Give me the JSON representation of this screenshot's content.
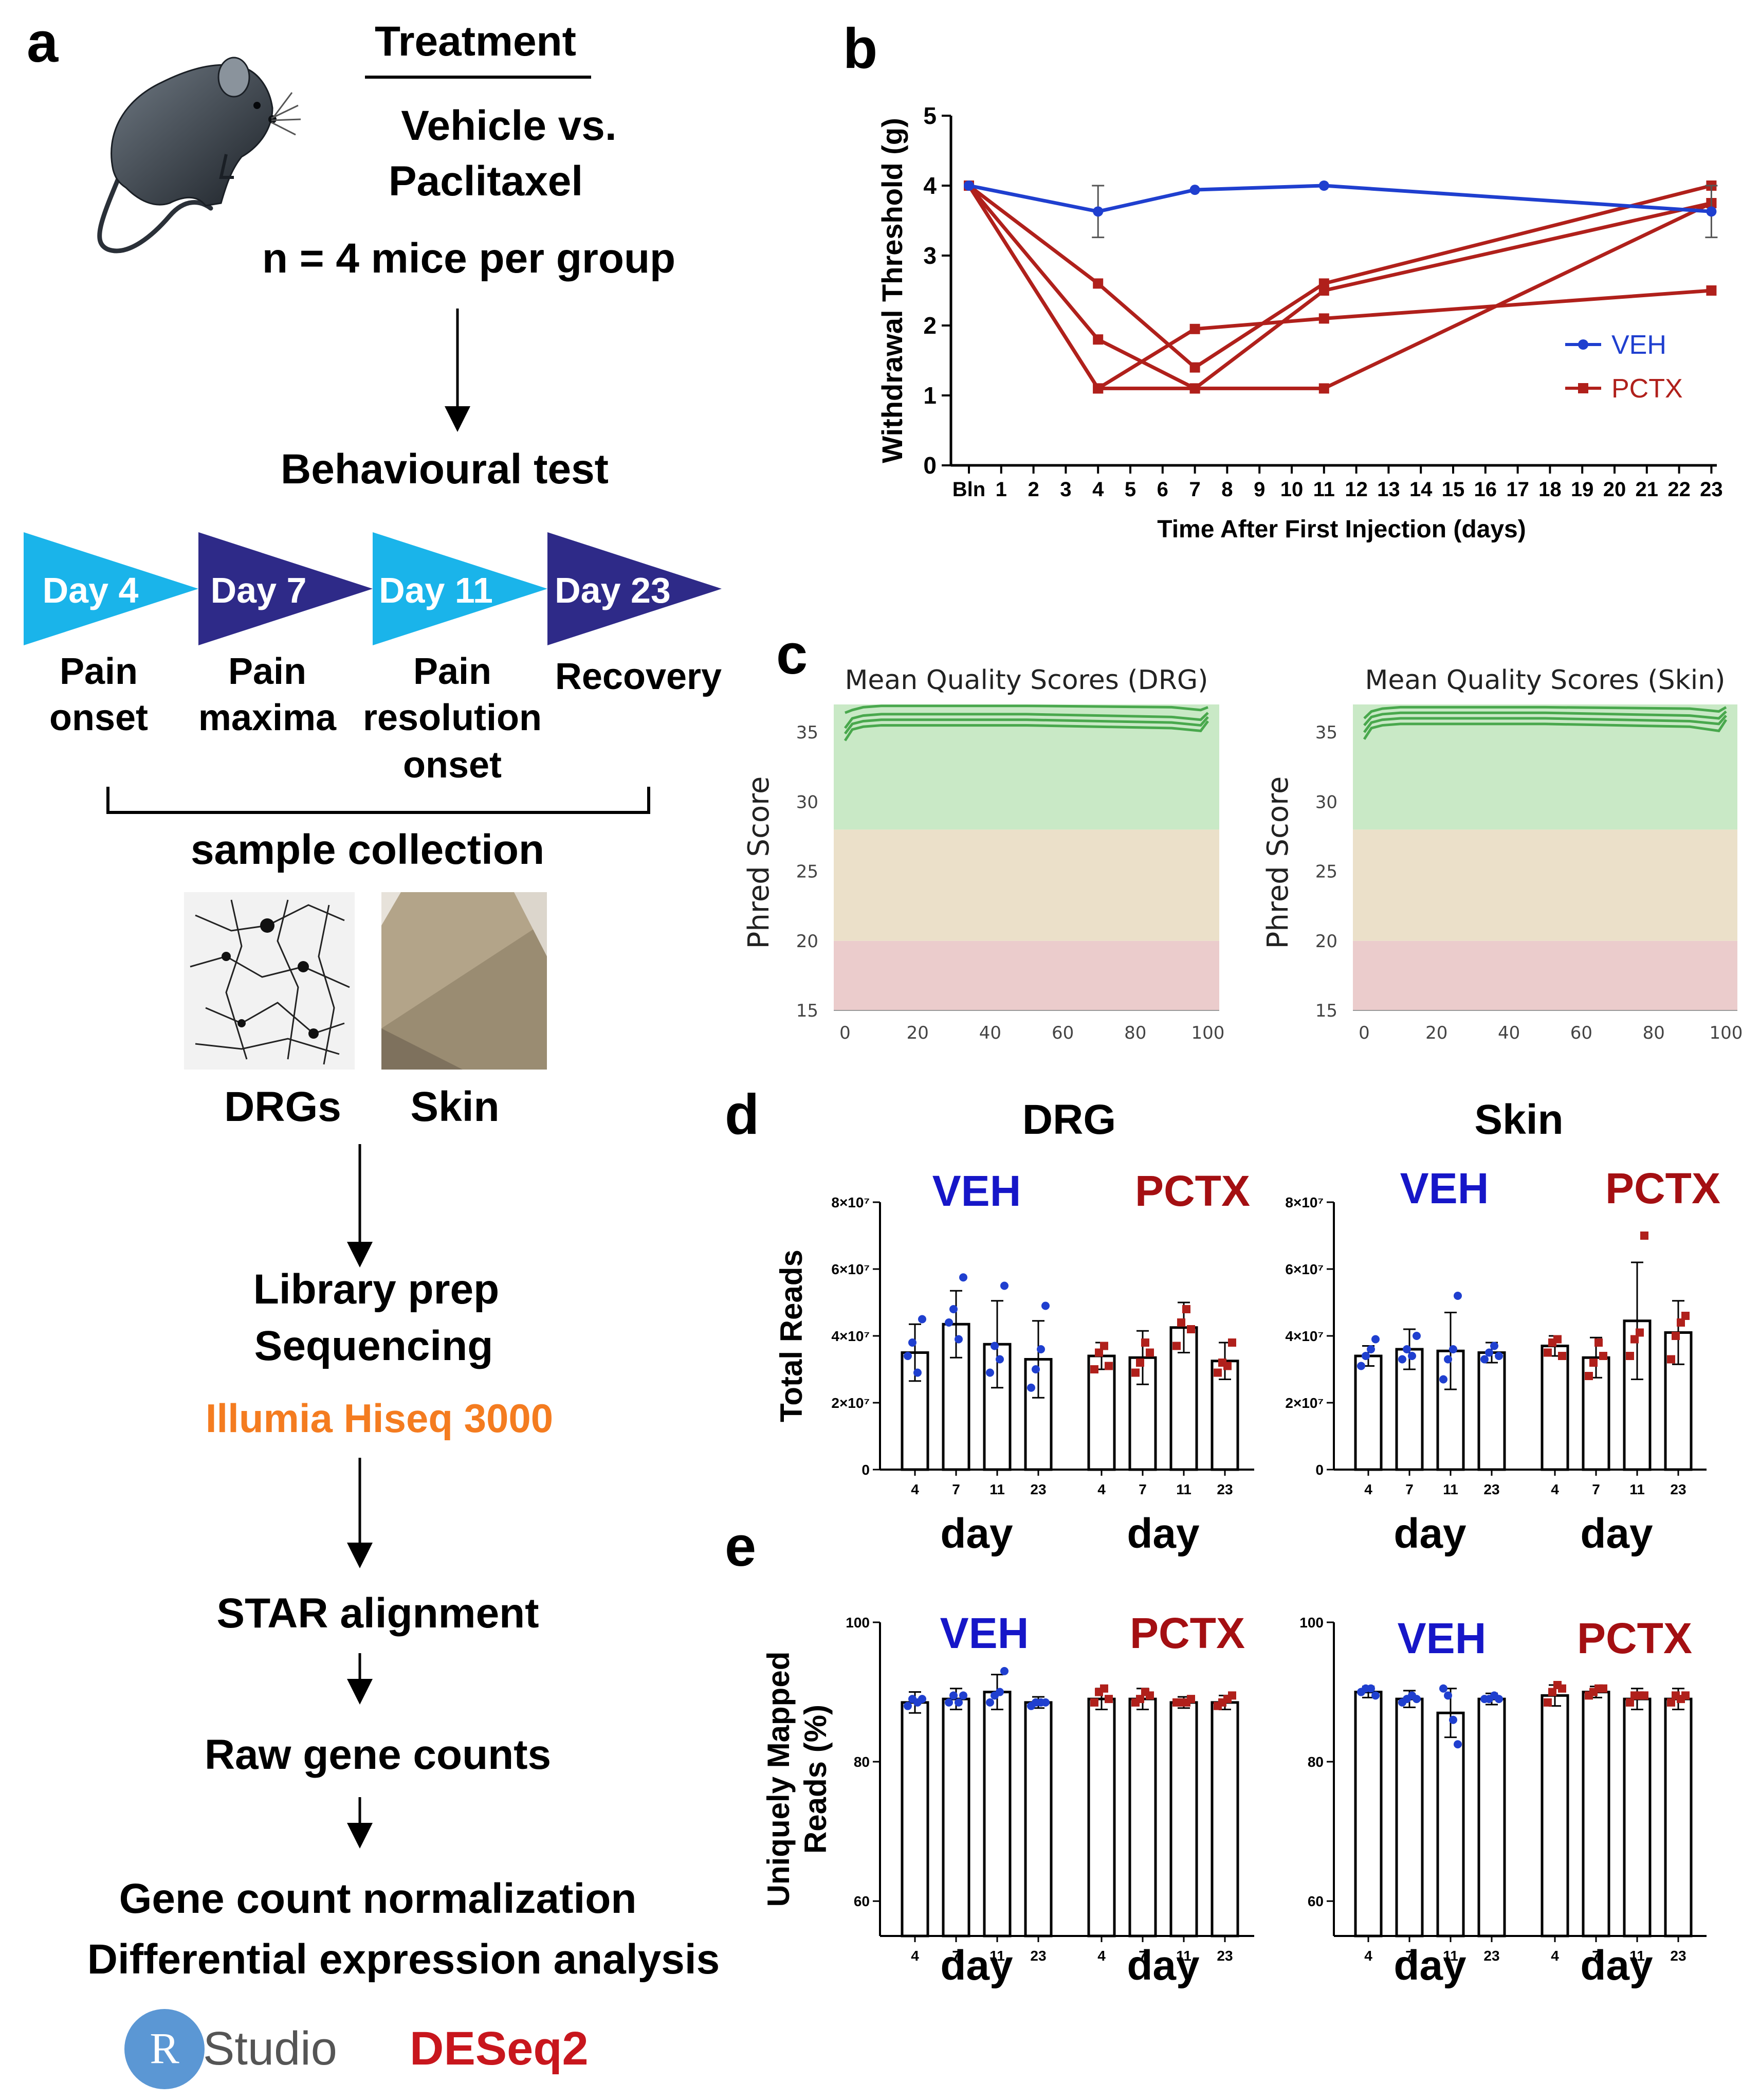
{
  "colors": {
    "veh": "#1f3fcf",
    "pctx": "#b0201b",
    "veh_label": "#1616c8",
    "pctx_label": "#a40f12",
    "orange": "#f47c20",
    "day_light": "#1ab4ea",
    "day_dark": "#2e2a88",
    "qc_green": "#c9e9c6",
    "qc_tan": "#ebe0c9",
    "qc_red": "#ebcccc",
    "qc_line": "#49a84d",
    "r_blue": "#5b97d4"
  },
  "panel_labels": {
    "a": "a",
    "b": "b",
    "c": "c",
    "d": "d",
    "e": "e"
  },
  "panel_a": {
    "treatment_heading": "Treatment",
    "vehicle_line": "Vehicle vs.",
    "paclitaxel_line": "Paclitaxel",
    "n_line": "n = 4 mice per group",
    "behaviour_heading": "Behavioural test",
    "days": [
      {
        "label": "Day 4",
        "phase": [
          "Pain",
          "onset"
        ]
      },
      {
        "label": "Day 7",
        "phase": [
          "Pain",
          "maxima"
        ]
      },
      {
        "label": "Day 11",
        "phase": [
          "Pain",
          "resolution",
          "onset"
        ]
      },
      {
        "label": "Day 23",
        "phase": [
          "Recovery"
        ]
      }
    ],
    "sample_collection": "sample collection",
    "drg_label": "DRGs",
    "skin_label": "Skin",
    "library_prep": "Library prep",
    "sequencing": "Sequencing",
    "platform": "Illumia Hiseq 3000",
    "star": "STAR alignment",
    "raw_counts": "Raw gene counts",
    "normalization": "Gene count normalization",
    "de_analysis": "Differential expression analysis",
    "rstudio_r": "R",
    "rstudio_text": "Studio",
    "deseq": "DESeq2"
  },
  "chart_data": [
    {
      "id": "b",
      "type": "line",
      "title": "",
      "ylabel": "Withdrawal Threshold (g)",
      "xlabel": "Time After First Injection (days)",
      "ylim": [
        0,
        5
      ],
      "yticks": [
        "0",
        "1",
        "2",
        "3",
        "4",
        "5"
      ],
      "x_tick_labels": [
        "Bln",
        "1",
        "2",
        "3",
        "4",
        "5",
        "6",
        "7",
        "8",
        "9",
        "10",
        "11",
        "12",
        "13",
        "14",
        "15",
        "16",
        "17",
        "18",
        "19",
        "20",
        "21",
        "22",
        "23"
      ],
      "legend": [
        {
          "name": "VEH",
          "marker": "circle"
        },
        {
          "name": "PCTX",
          "marker": "square"
        }
      ],
      "legend_position": "right",
      "veh": {
        "name": "VEH",
        "x": [
          0,
          4,
          7,
          11,
          23
        ],
        "y": [
          4.0,
          3.63,
          3.94,
          4.0,
          3.63
        ],
        "err": [
          0,
          0.37,
          0,
          0,
          0.37
        ]
      },
      "pctx_lines": [
        {
          "x": [
            0,
            4,
            7,
            11,
            23
          ],
          "y": [
            4.0,
            2.6,
            1.4,
            2.6,
            4.0
          ]
        },
        {
          "x": [
            0,
            4,
            7,
            11,
            23
          ],
          "y": [
            4.0,
            1.8,
            1.1,
            2.5,
            3.75
          ]
        },
        {
          "x": [
            0,
            4,
            7,
            11,
            23
          ],
          "y": [
            4.0,
            1.1,
            1.95,
            2.1,
            2.5
          ]
        },
        {
          "x": [
            0,
            4,
            7,
            11,
            23
          ],
          "y": [
            4.0,
            1.1,
            1.1,
            1.1,
            3.75
          ]
        }
      ]
    },
    {
      "id": "c",
      "type": "line",
      "qc_panels": [
        {
          "title": "Mean Quality Scores (DRG)",
          "ylabel": "Phred Score",
          "xticks": [
            "0",
            "20",
            "40",
            "60",
            "80",
            "100"
          ],
          "yticks": [
            "15",
            "20",
            "25",
            "30",
            "35"
          ],
          "xlim": [
            0,
            100
          ],
          "ylim": [
            15,
            37
          ],
          "zones": [
            [
              28,
              37
            ],
            [
              20,
              28
            ],
            [
              15,
              20
            ]
          ],
          "curves": [
            {
              "x": [
                0,
                2,
                5,
                10,
                50,
                90,
                98,
                100
              ],
              "y": [
                36.4,
                36.6,
                36.8,
                36.9,
                36.9,
                36.8,
                36.6,
                36.8
              ]
            },
            {
              "x": [
                0,
                2,
                5,
                10,
                50,
                90,
                98,
                100
              ],
              "y": [
                35.3,
                36.0,
                36.2,
                36.3,
                36.3,
                36.1,
                35.9,
                36.4
              ]
            },
            {
              "x": [
                0,
                2,
                5,
                10,
                50,
                90,
                98,
                100
              ],
              "y": [
                34.9,
                35.6,
                35.8,
                35.9,
                35.9,
                35.7,
                35.5,
                36.1
              ]
            },
            {
              "x": [
                0,
                2,
                5,
                10,
                50,
                90,
                98,
                100
              ],
              "y": [
                34.4,
                35.2,
                35.4,
                35.5,
                35.5,
                35.3,
                35.1,
                35.8
              ]
            }
          ]
        },
        {
          "title": "Mean Quality Scores (Skin)",
          "ylabel": "Phred Score",
          "xticks": [
            "0",
            "20",
            "40",
            "60",
            "80",
            "100"
          ],
          "yticks": [
            "15",
            "20",
            "25",
            "30",
            "35"
          ],
          "xlim": [
            0,
            100
          ],
          "ylim": [
            15,
            37
          ],
          "zones": [
            [
              28,
              37
            ],
            [
              20,
              28
            ],
            [
              15,
              20
            ]
          ],
          "curves": [
            {
              "x": [
                0,
                2,
                5,
                10,
                50,
                90,
                98,
                100
              ],
              "y": [
                36.0,
                36.5,
                36.7,
                36.8,
                36.8,
                36.7,
                36.5,
                36.8
              ]
            },
            {
              "x": [
                0,
                2,
                5,
                10,
                50,
                90,
                98,
                100
              ],
              "y": [
                35.5,
                36.1,
                36.3,
                36.4,
                36.4,
                36.2,
                36.0,
                36.5
              ]
            },
            {
              "x": [
                0,
                2,
                5,
                10,
                50,
                90,
                98,
                100
              ],
              "y": [
                35.0,
                35.7,
                35.9,
                36.0,
                36.0,
                35.8,
                35.6,
                36.2
              ]
            },
            {
              "x": [
                0,
                2,
                5,
                10,
                50,
                90,
                98,
                100
              ],
              "y": [
                34.5,
                35.3,
                35.5,
                35.6,
                35.6,
                35.4,
                35.1,
                35.9
              ]
            }
          ]
        }
      ]
    },
    {
      "id": "d",
      "type": "bar",
      "ylabel": "Total Reads",
      "yticks": [
        "0",
        "2×10⁷",
        "4×10⁷",
        "6×10⁷",
        "8×10⁷"
      ],
      "ylim": [
        0,
        80000000
      ],
      "xlabel": "day",
      "categories": [
        "4",
        "7",
        "11",
        "23"
      ],
      "group_labels": [
        "VEH",
        "PCTX"
      ],
      "panels": [
        {
          "title": "DRG",
          "veh": {
            "means": [
              35000000,
              43500000,
              37500000,
              33000000
            ],
            "sd": [
              8500000,
              10000000,
              13000000,
              11500000
            ],
            "points": [
              [
                34000000,
                38000000,
                29000000,
                45000000
              ],
              [
                44000000,
                48000000,
                39000000,
                57500000
              ],
              [
                29000000,
                37000000,
                33000000,
                55000000
              ],
              [
                24500000,
                30000000,
                36000000,
                49000000
              ]
            ]
          },
          "pctx": {
            "means": [
              34000000,
              33500000,
              42500000,
              32500000
            ],
            "sd": [
              4000000,
              8000000,
              7500000,
              5500000
            ],
            "points": [
              [
                30000000,
                35000000,
                37000000,
                31000000
              ],
              [
                29000000,
                32000000,
                38000000,
                35000000
              ],
              [
                37000000,
                44000000,
                48000000,
                42000000
              ],
              [
                29000000,
                32000000,
                31000000,
                38000000
              ]
            ]
          }
        },
        {
          "title": "Skin",
          "veh": {
            "means": [
              34000000,
              36000000,
              35500000,
              35000000
            ],
            "sd": [
              3000000,
              6000000,
              11500000,
              3000000
            ],
            "points": [
              [
                31000000,
                34000000,
                36000000,
                39000000
              ],
              [
                33000000,
                36000000,
                34000000,
                40000000
              ],
              [
                27000000,
                33000000,
                36000000,
                52000000
              ],
              [
                33000000,
                35000000,
                37000000,
                34000000
              ]
            ]
          },
          "pctx": {
            "means": [
              37000000,
              33500000,
              44500000,
              41000000
            ],
            "sd": [
              3000000,
              6000000,
              17500000,
              9500000
            ],
            "points": [
              [
                35000000,
                38000000,
                39000000,
                34000000
              ],
              [
                28000000,
                32000000,
                38000000,
                34000000
              ],
              [
                34000000,
                39000000,
                41000000,
                70000000
              ],
              [
                33000000,
                40000000,
                44000000,
                46000000
              ]
            ]
          }
        }
      ]
    },
    {
      "id": "e",
      "type": "bar",
      "ylabel": "Uniquely Mapped Reads (%)",
      "yticks": [
        "60",
        "80",
        "100"
      ],
      "ylim": [
        55,
        100
      ],
      "xlabel": "day",
      "categories": [
        "4",
        "7",
        "11",
        "23"
      ],
      "group_labels": [
        "VEH",
        "PCTX"
      ],
      "panels": [
        {
          "title": "DRG",
          "veh": {
            "means": [
              88.5,
              89,
              90,
              88.5
            ],
            "sd": [
              1.5,
              1.5,
              2.5,
              0.8
            ],
            "points": [
              [
                88,
                89,
                88.5,
                89
              ],
              [
                88.5,
                89.5,
                88.5,
                89.5
              ],
              [
                88.5,
                89.5,
                90,
                93
              ],
              [
                88,
                88.5,
                88.5,
                88.5
              ]
            ]
          },
          "pctx": {
            "means": [
              89,
              89,
              88.5,
              88.5
            ],
            "sd": [
              1.5,
              1.5,
              0.8,
              1
            ],
            "points": [
              [
                88.5,
                90,
                90.5,
                89
              ],
              [
                88.5,
                89,
                90,
                89.5
              ],
              [
                88.5,
                88.5,
                88.5,
                89
              ],
              [
                88,
                88.5,
                89,
                89.5
              ]
            ]
          }
        },
        {
          "title": "Skin",
          "veh": {
            "means": [
              90,
              89,
              87,
              89
            ],
            "sd": [
              0.8,
              1.2,
              3.5,
              0.8
            ],
            "points": [
              [
                90,
                90.5,
                90.5,
                89.5
              ],
              [
                88.5,
                89,
                89.5,
                89
              ],
              [
                90.5,
                89.5,
                86,
                82.5
              ],
              [
                89,
                89,
                89.5,
                89
              ]
            ]
          },
          "pctx": {
            "means": [
              89.5,
              90,
              89,
              89
            ],
            "sd": [
              1.5,
              0.8,
              1.5,
              1.5
            ],
            "points": [
              [
                88.5,
                90,
                91,
                90.5
              ],
              [
                89.5,
                90,
                90.5,
                90.5
              ],
              [
                88.5,
                89.5,
                89.5,
                89.5
              ],
              [
                88.5,
                89.5,
                89,
                89.5
              ]
            ]
          }
        }
      ]
    }
  ]
}
